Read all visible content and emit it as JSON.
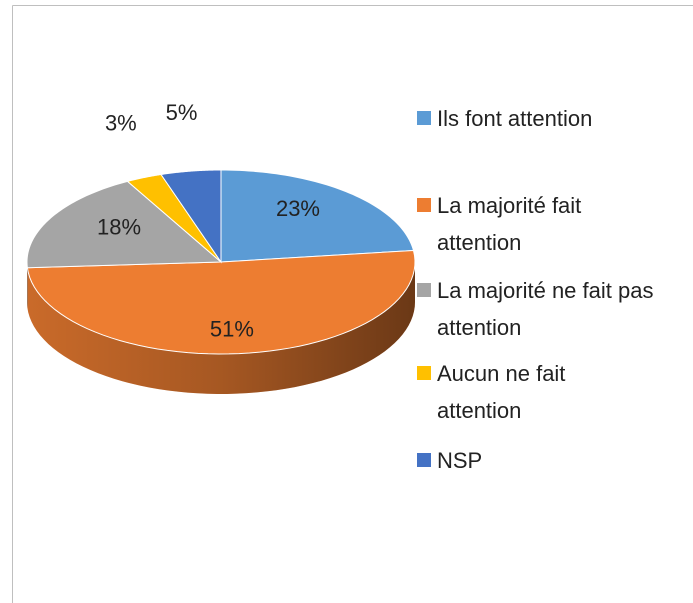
{
  "chart_data": {
    "type": "pie",
    "categories": [
      "Ils font attention",
      "La majorité fait attention",
      "La majorité ne fait pas attention",
      "Aucun ne fait attention",
      "NSP"
    ],
    "values": [
      23,
      51,
      18,
      3,
      5
    ],
    "value_labels": [
      "23%",
      "51%",
      "18%",
      "3%",
      "5%"
    ],
    "colors": [
      "#5b9bd5",
      "#ed7d31",
      "#a5a5a5",
      "#ffc000",
      "#4472c4"
    ],
    "legend": "right"
  }
}
